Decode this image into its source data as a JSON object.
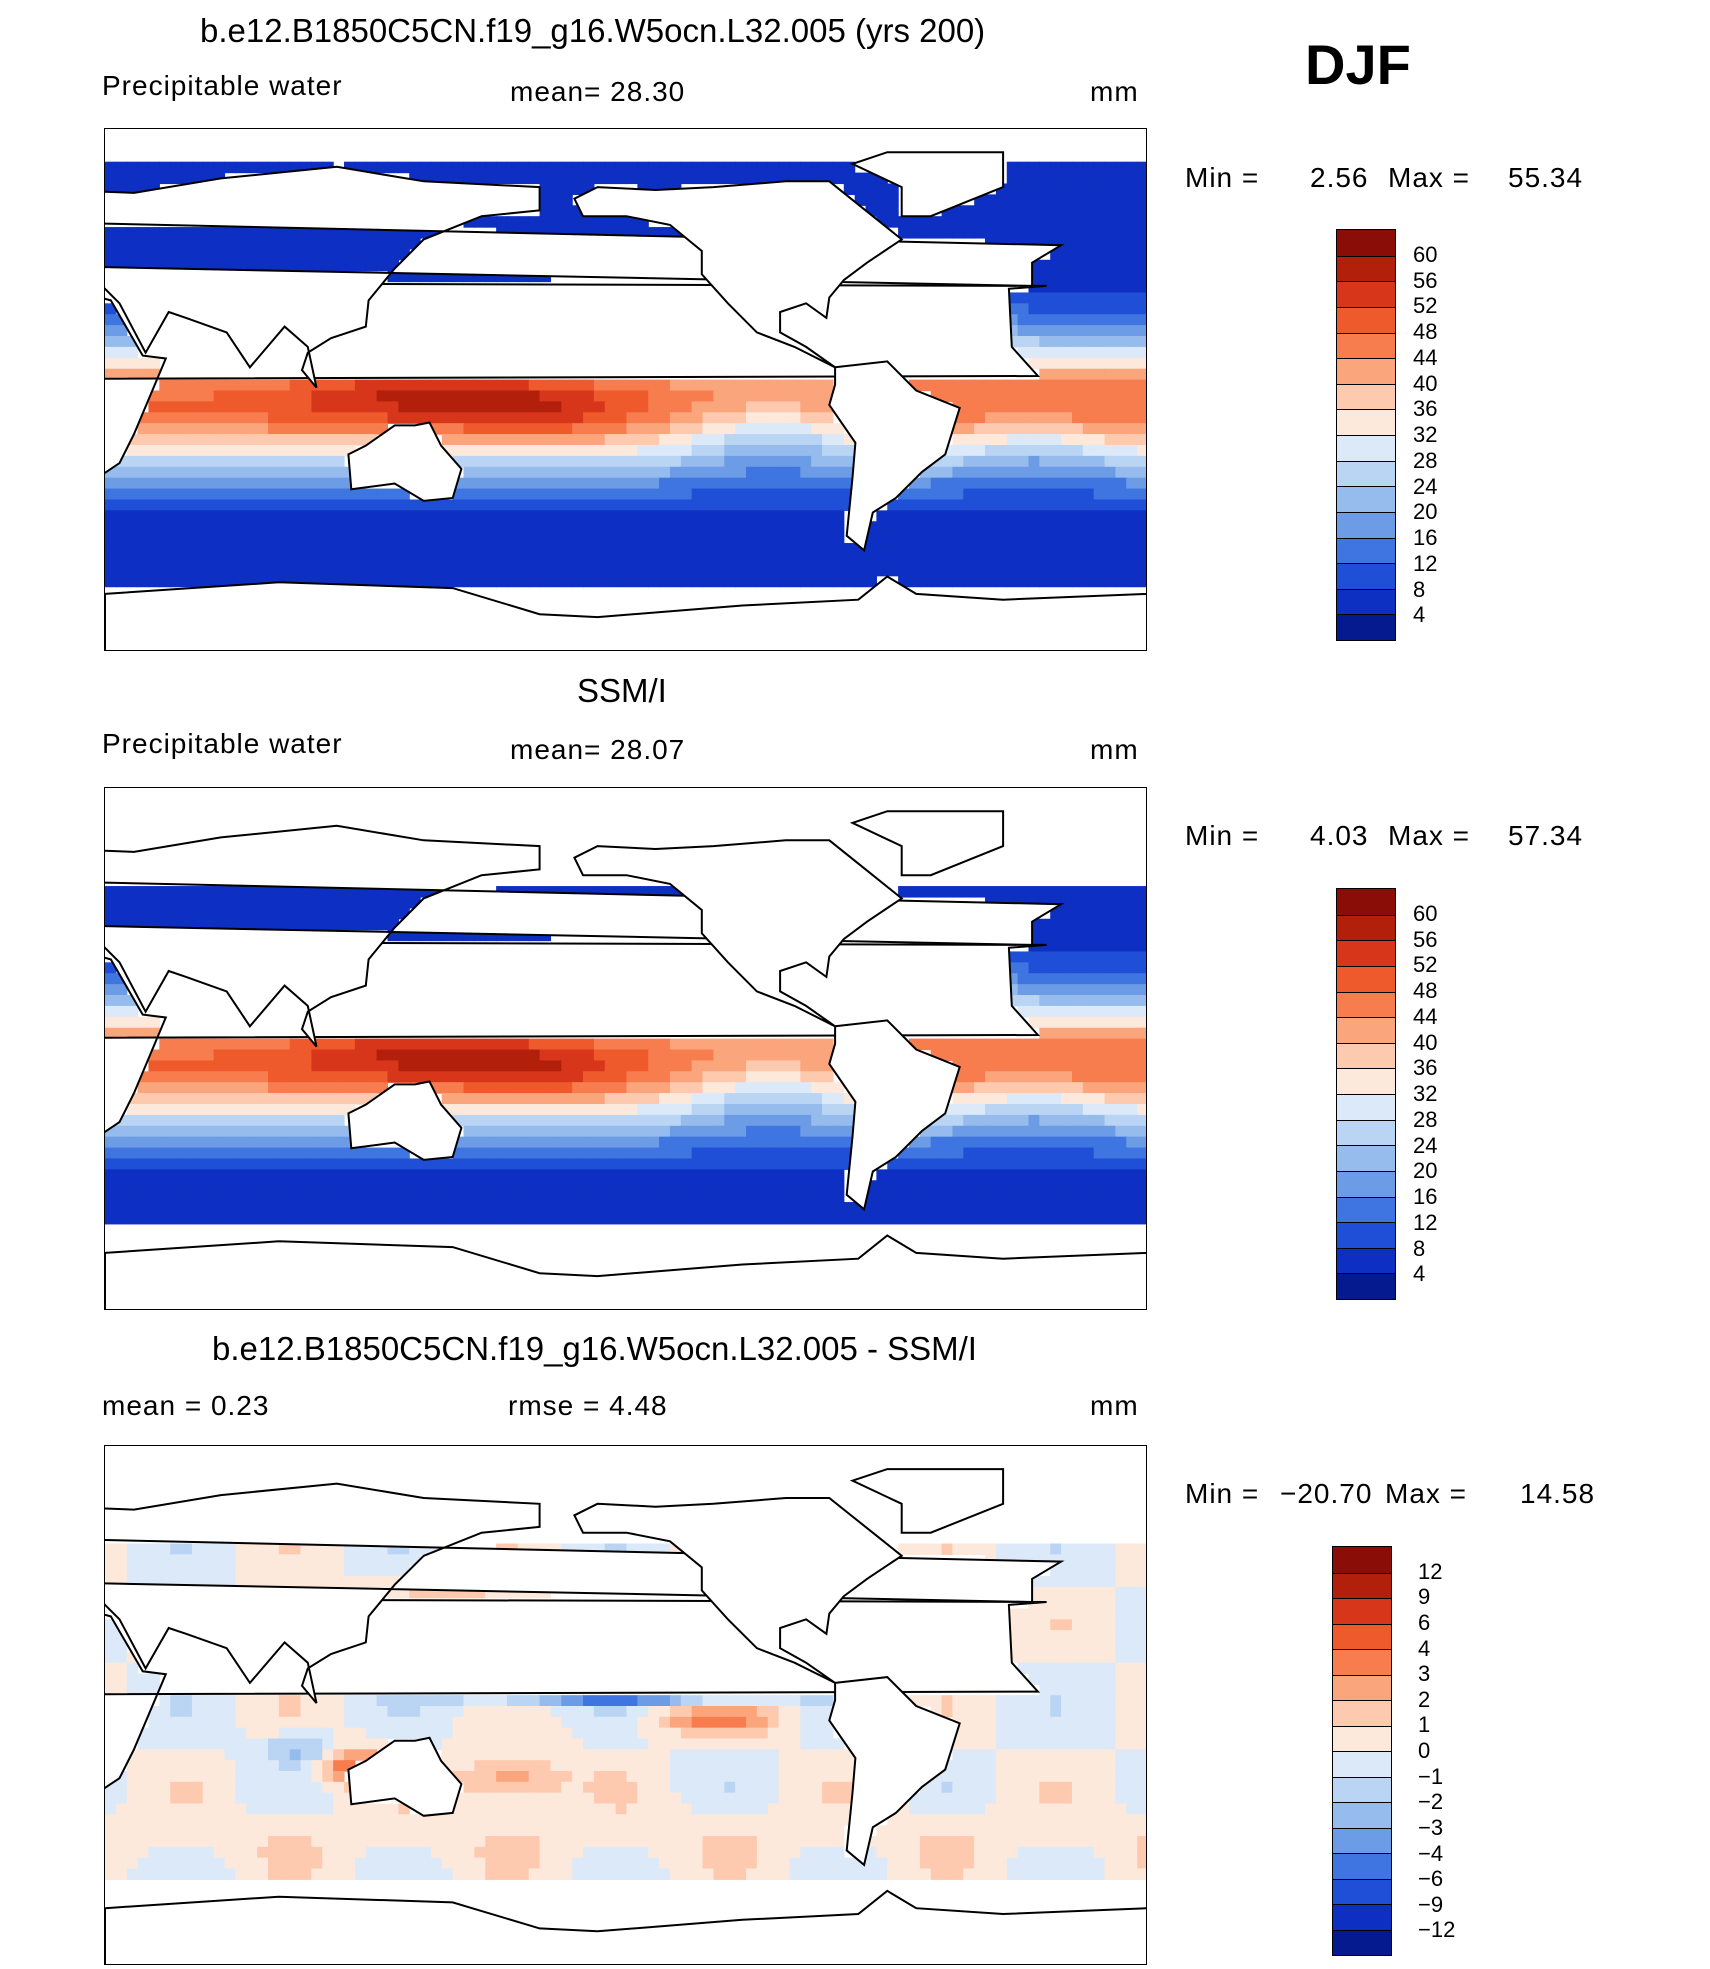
{
  "season": "DJF",
  "panels": [
    {
      "id": "model",
      "title": "b.e12.B1850C5CN.f19_g16.W5ocn.L32.005 (yrs 200)",
      "left_label": "Precipitable  water",
      "mid_label": "mean=   28.30",
      "units": "mm",
      "min_text": "Min  =",
      "min_value": "2.56",
      "max_text": "Max  =",
      "max_value": "55.34",
      "colorbar_labels": [
        "60",
        "56",
        "52",
        "48",
        "44",
        "40",
        "36",
        "32",
        "28",
        "24",
        "20",
        "16",
        "12",
        "8",
        "4"
      ],
      "colorbar_colors": [
        "#8b0d07",
        "#b2200c",
        "#d7361a",
        "#ef5a2c",
        "#f77d4f",
        "#fba57d",
        "#fdcab0",
        "#fde9db",
        "#dbe9f8",
        "#bad4f3",
        "#96bced",
        "#6c9ce6",
        "#3f75e0",
        "#1f4fd6",
        "#0d2fc2",
        "#051a8f"
      ],
      "colorbar_min_value": 0,
      "colorbar_max_value": 64,
      "field": "mean"
    },
    {
      "id": "obs",
      "title": "SSM/I",
      "left_label": "Precipitable  water",
      "mid_label": "mean=   28.07",
      "units": "mm",
      "min_text": "Min  =",
      "min_value": "4.03",
      "max_text": "Max  =",
      "max_value": "57.34",
      "colorbar_labels": [
        "60",
        "56",
        "52",
        "48",
        "44",
        "40",
        "36",
        "32",
        "28",
        "24",
        "20",
        "16",
        "12",
        "8",
        "4"
      ],
      "colorbar_colors": [
        "#8b0d07",
        "#b2200c",
        "#d7361a",
        "#ef5a2c",
        "#f77d4f",
        "#fba57d",
        "#fdcab0",
        "#fde9db",
        "#dbe9f8",
        "#bad4f3",
        "#96bced",
        "#6c9ce6",
        "#3f75e0",
        "#1f4fd6",
        "#0d2fc2",
        "#051a8f"
      ],
      "colorbar_min_value": 0,
      "colorbar_max_value": 64,
      "field": "mean"
    },
    {
      "id": "diff",
      "title": "b.e12.B1850C5CN.f19_g16.W5ocn.L32.005 - SSM/I",
      "left_label": "mean  =     0.23",
      "mid_label": "rmse  =     4.48",
      "units": "mm",
      "min_text": "Min  =",
      "min_value": "−20.70",
      "max_text": "Max  =",
      "max_value": "14.58",
      "colorbar_labels": [
        "12",
        "9",
        "6",
        "4",
        "3",
        "2",
        "1",
        "0",
        "−1",
        "−2",
        "−3",
        "−4",
        "−6",
        "−9",
        "−12"
      ],
      "colorbar_colors": [
        "#8b0d07",
        "#b2200c",
        "#d7361a",
        "#ef5a2c",
        "#f77d4f",
        "#fba57d",
        "#fdcab0",
        "#fde9db",
        "#dbe9f8",
        "#bad4f3",
        "#96bced",
        "#6c9ce6",
        "#3f75e0",
        "#1f4fd6",
        "#0d2fc2",
        "#051a8f"
      ],
      "colorbar_min_value": -15,
      "colorbar_max_value": 15,
      "field": "diff"
    }
  ]
}
